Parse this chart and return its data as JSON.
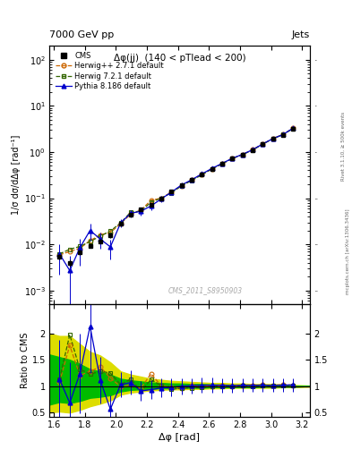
{
  "title_top": "7000 GeV pp",
  "title_right": "Jets",
  "plot_title": "Δφ(jj)  (140 < pTlead < 200)",
  "xlabel": "Δφ [rad]",
  "ylabel_main": "1/σ dσ/dΔφ [rad⁻¹]",
  "ylabel_ratio": "Ratio to CMS",
  "watermark": "CMS_2011_S8950903",
  "side_label": "Rivet 3.1.10, ≥ 500k events",
  "side_label2": "mcplots.cern.ch [arXiv:1306.3436]",
  "xlim": [
    1.57,
    3.25
  ],
  "ylim_main": [
    0.0005,
    200.0
  ],
  "ylim_ratio": [
    0.42,
    2.55
  ],
  "cms_x": [
    1.636,
    1.702,
    1.767,
    1.833,
    1.899,
    1.964,
    2.03,
    2.095,
    2.161,
    2.226,
    2.292,
    2.357,
    2.423,
    2.488,
    2.554,
    2.619,
    2.685,
    2.75,
    2.816,
    2.881,
    2.947,
    3.012,
    3.078,
    3.143
  ],
  "cms_y": [
    0.00548,
    0.00395,
    0.0068,
    0.00938,
    0.0117,
    0.0156,
    0.0282,
    0.044,
    0.0572,
    0.0728,
    0.0993,
    0.138,
    0.193,
    0.248,
    0.329,
    0.431,
    0.558,
    0.722,
    0.87,
    1.1,
    1.47,
    1.92,
    2.35,
    3.22
  ],
  "cms_yerr": [
    0.0007,
    0.0007,
    0.0009,
    0.001,
    0.0013,
    0.0016,
    0.0025,
    0.004,
    0.0052,
    0.0065,
    0.0085,
    0.0115,
    0.016,
    0.02,
    0.027,
    0.035,
    0.045,
    0.058,
    0.07,
    0.088,
    0.12,
    0.15,
    0.19,
    0.26
  ],
  "herwig271_x": [
    1.636,
    1.702,
    1.767,
    1.833,
    1.899,
    1.964,
    2.03,
    2.095,
    2.161,
    2.226,
    2.292,
    2.357,
    2.423,
    2.488,
    2.554,
    2.619,
    2.685,
    2.75,
    2.816,
    2.881,
    2.947,
    3.012,
    3.078,
    3.143
  ],
  "herwig271_y": [
    0.0059,
    0.007,
    0.0082,
    0.012,
    0.016,
    0.018,
    0.028,
    0.045,
    0.055,
    0.09,
    0.1,
    0.135,
    0.185,
    0.25,
    0.33,
    0.43,
    0.56,
    0.72,
    0.88,
    1.12,
    1.5,
    1.95,
    2.42,
    3.28
  ],
  "herwig721_x": [
    1.636,
    1.702,
    1.767,
    1.833,
    1.899,
    1.964,
    2.03,
    2.095,
    2.161,
    2.226,
    2.292,
    2.357,
    2.423,
    2.488,
    2.554,
    2.619,
    2.685,
    2.75,
    2.816,
    2.881,
    2.947,
    3.012,
    3.078,
    3.143
  ],
  "herwig721_y": [
    0.0062,
    0.0078,
    0.009,
    0.0115,
    0.015,
    0.0195,
    0.029,
    0.05,
    0.052,
    0.082,
    0.1,
    0.13,
    0.185,
    0.24,
    0.32,
    0.43,
    0.555,
    0.72,
    0.88,
    1.1,
    1.48,
    1.93,
    2.38,
    3.25
  ],
  "pythia_x": [
    1.636,
    1.702,
    1.767,
    1.833,
    1.899,
    1.964,
    2.03,
    2.095,
    2.161,
    2.226,
    2.292,
    2.357,
    2.423,
    2.488,
    2.554,
    2.619,
    2.685,
    2.75,
    2.816,
    2.881,
    2.947,
    3.012,
    3.078,
    3.143
  ],
  "pythia_y": [
    0.0062,
    0.0027,
    0.0084,
    0.02,
    0.013,
    0.0088,
    0.029,
    0.047,
    0.052,
    0.068,
    0.096,
    0.135,
    0.193,
    0.25,
    0.335,
    0.44,
    0.568,
    0.73,
    0.888,
    1.12,
    1.5,
    1.95,
    2.4,
    3.3
  ],
  "pythia_yerr": [
    0.004,
    0.003,
    0.005,
    0.008,
    0.005,
    0.004,
    0.006,
    0.009,
    0.01,
    0.012,
    0.015,
    0.02,
    0.025,
    0.03,
    0.038,
    0.048,
    0.06,
    0.075,
    0.09,
    0.11,
    0.15,
    0.19,
    0.23,
    0.31
  ],
  "band_yellow_x": [
    1.57,
    1.636,
    1.702,
    1.767,
    1.833,
    1.899,
    1.964,
    2.03,
    2.095,
    2.161,
    2.226,
    2.292,
    2.357,
    2.423,
    2.488,
    2.554,
    2.619,
    2.685,
    2.75,
    2.816,
    2.881,
    2.947,
    3.012,
    3.078,
    3.143,
    3.25
  ],
  "band_yellow_lo": [
    0.5,
    0.52,
    0.5,
    0.55,
    0.62,
    0.67,
    0.73,
    0.84,
    0.88,
    0.9,
    0.92,
    0.93,
    0.94,
    0.94,
    0.95,
    0.95,
    0.96,
    0.96,
    0.97,
    0.97,
    0.97,
    0.97,
    0.97,
    0.98,
    0.98,
    0.99
  ],
  "band_yellow_hi": [
    2.0,
    1.95,
    1.95,
    1.8,
    1.65,
    1.58,
    1.45,
    1.28,
    1.22,
    1.18,
    1.14,
    1.12,
    1.1,
    1.09,
    1.08,
    1.07,
    1.06,
    1.06,
    1.05,
    1.05,
    1.04,
    1.04,
    1.04,
    1.03,
    1.02,
    1.01
  ],
  "band_green_x": [
    1.57,
    1.636,
    1.702,
    1.767,
    1.833,
    1.899,
    1.964,
    2.03,
    2.095,
    2.161,
    2.226,
    2.292,
    2.357,
    2.423,
    2.488,
    2.554,
    2.619,
    2.685,
    2.75,
    2.816,
    2.881,
    2.947,
    3.012,
    3.078,
    3.143,
    3.25
  ],
  "band_green_lo": [
    0.65,
    0.7,
    0.68,
    0.72,
    0.78,
    0.8,
    0.83,
    0.9,
    0.93,
    0.94,
    0.95,
    0.96,
    0.96,
    0.97,
    0.97,
    0.97,
    0.98,
    0.98,
    0.98,
    0.98,
    0.98,
    0.99,
    0.99,
    0.99,
    0.99,
    1.0
  ],
  "band_green_hi": [
    1.6,
    1.55,
    1.5,
    1.42,
    1.32,
    1.28,
    1.22,
    1.14,
    1.11,
    1.09,
    1.07,
    1.06,
    1.05,
    1.05,
    1.04,
    1.04,
    1.03,
    1.03,
    1.02,
    1.02,
    1.02,
    1.02,
    1.01,
    1.01,
    1.01,
    1.0
  ],
  "colors": {
    "cms": "#000000",
    "herwig271": "#cc6600",
    "herwig721": "#336600",
    "pythia": "#0000cc",
    "band_green": "#00bb00",
    "band_yellow": "#dddd00"
  }
}
